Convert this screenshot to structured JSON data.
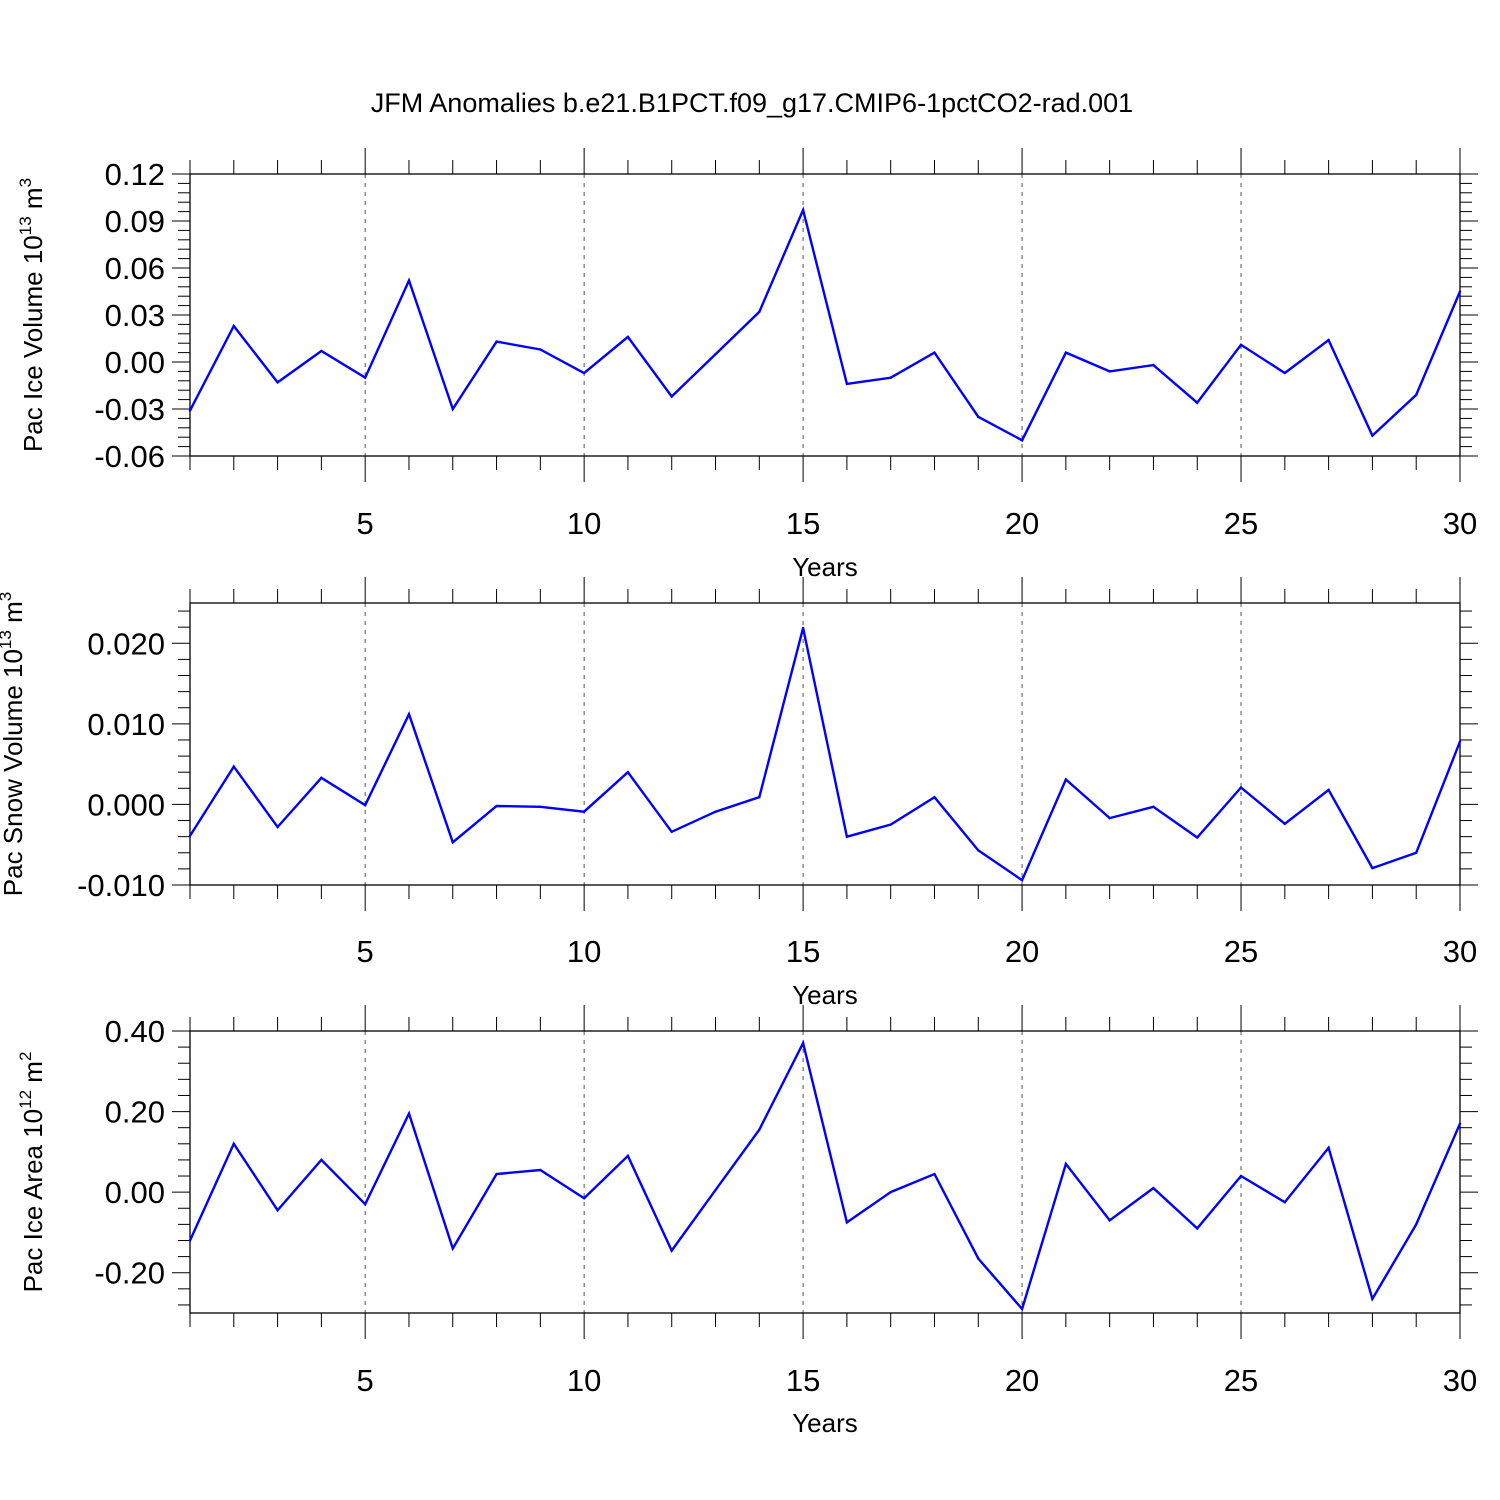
{
  "title": "JFM Anomalies b.e21.B1PCT.f09_g17.CMIP6-1pctCO2-rad.001",
  "colors": {
    "line": "#0000ff",
    "axis": "#000000",
    "grid": "#555555"
  },
  "chart_data": [
    {
      "type": "line",
      "xlabel": "Years",
      "ylabel": {
        "text": "Pac Ice Volume 10",
        "sup1": "13",
        "unit": " m",
        "sup2": "3"
      },
      "xlim": [
        1,
        30
      ],
      "ylim": [
        -0.06,
        0.12
      ],
      "xticks": [
        "5",
        "10",
        "15",
        "20",
        "25",
        "30"
      ],
      "yticks": [
        "0.12",
        "0.09",
        "0.06",
        "0.03",
        "0.00",
        "-0.03",
        "-0.06"
      ],
      "x": [
        1,
        2,
        3,
        4,
        5,
        6,
        7,
        8,
        9,
        10,
        11,
        12,
        13,
        14,
        15,
        16,
        17,
        18,
        19,
        20,
        21,
        22,
        23,
        24,
        25,
        26,
        27,
        28,
        29,
        30
      ],
      "values": [
        -0.031,
        0.023,
        -0.013,
        0.007,
        -0.01,
        0.052,
        -0.03,
        0.013,
        0.008,
        -0.007,
        0.016,
        -0.022,
        0.005,
        0.032,
        0.097,
        -0.014,
        -0.01,
        0.006,
        -0.035,
        -0.05,
        0.006,
        -0.006,
        -0.002,
        -0.026,
        0.011,
        -0.007,
        0.014,
        -0.047,
        -0.021,
        0.045
      ]
    },
    {
      "type": "line",
      "xlabel": "Years",
      "ylabel": {
        "text": "Pac Snow Volume 10",
        "sup1": "13",
        "unit": " m",
        "sup2": "3"
      },
      "xlim": [
        1,
        30
      ],
      "ylim": [
        -0.01,
        0.025
      ],
      "xticks": [
        "5",
        "10",
        "15",
        "20",
        "25",
        "30"
      ],
      "yticks": [
        "0.020",
        "0.010",
        "0.000",
        "-0.010"
      ],
      "x": [
        1,
        2,
        3,
        4,
        5,
        6,
        7,
        8,
        9,
        10,
        11,
        12,
        13,
        14,
        15,
        16,
        17,
        18,
        19,
        20,
        21,
        22,
        23,
        24,
        25,
        26,
        27,
        28,
        29,
        30
      ],
      "values": [
        -0.0039,
        0.0047,
        -0.0028,
        0.0033,
        -0.0001,
        0.0112,
        -0.0047,
        -0.0002,
        -0.0003,
        -0.0009,
        0.004,
        -0.0034,
        -0.0009,
        0.0009,
        0.0219,
        -0.004,
        -0.0025,
        0.0009,
        -0.0057,
        -0.0094,
        0.0031,
        -0.0017,
        -0.0003,
        -0.0041,
        0.0021,
        -0.0024,
        0.0018,
        -0.0079,
        -0.006,
        0.0078
      ]
    },
    {
      "type": "line",
      "xlabel": "Years",
      "ylabel": {
        "text": "Pac Ice Area 10",
        "sup1": "12",
        "unit": " m",
        "sup2": "2"
      },
      "xlim": [
        1,
        30
      ],
      "ylim": [
        -0.3,
        0.4
      ],
      "xticks": [
        "5",
        "10",
        "15",
        "20",
        "25",
        "30"
      ],
      "yticks": [
        "0.40",
        "0.20",
        "0.00",
        "-0.20"
      ],
      "x": [
        1,
        2,
        3,
        4,
        5,
        6,
        7,
        8,
        9,
        10,
        11,
        12,
        13,
        14,
        15,
        16,
        17,
        18,
        19,
        20,
        21,
        22,
        23,
        24,
        25,
        26,
        27,
        28,
        29,
        30
      ],
      "values": [
        -0.12,
        0.12,
        -0.045,
        0.08,
        -0.03,
        0.195,
        -0.14,
        0.045,
        0.055,
        -0.015,
        0.09,
        -0.145,
        0.005,
        0.155,
        0.37,
        -0.075,
        0.0,
        0.045,
        -0.165,
        -0.29,
        0.07,
        -0.07,
        0.01,
        -0.09,
        0.04,
        -0.025,
        0.11,
        -0.265,
        -0.08,
        0.17
      ]
    }
  ]
}
